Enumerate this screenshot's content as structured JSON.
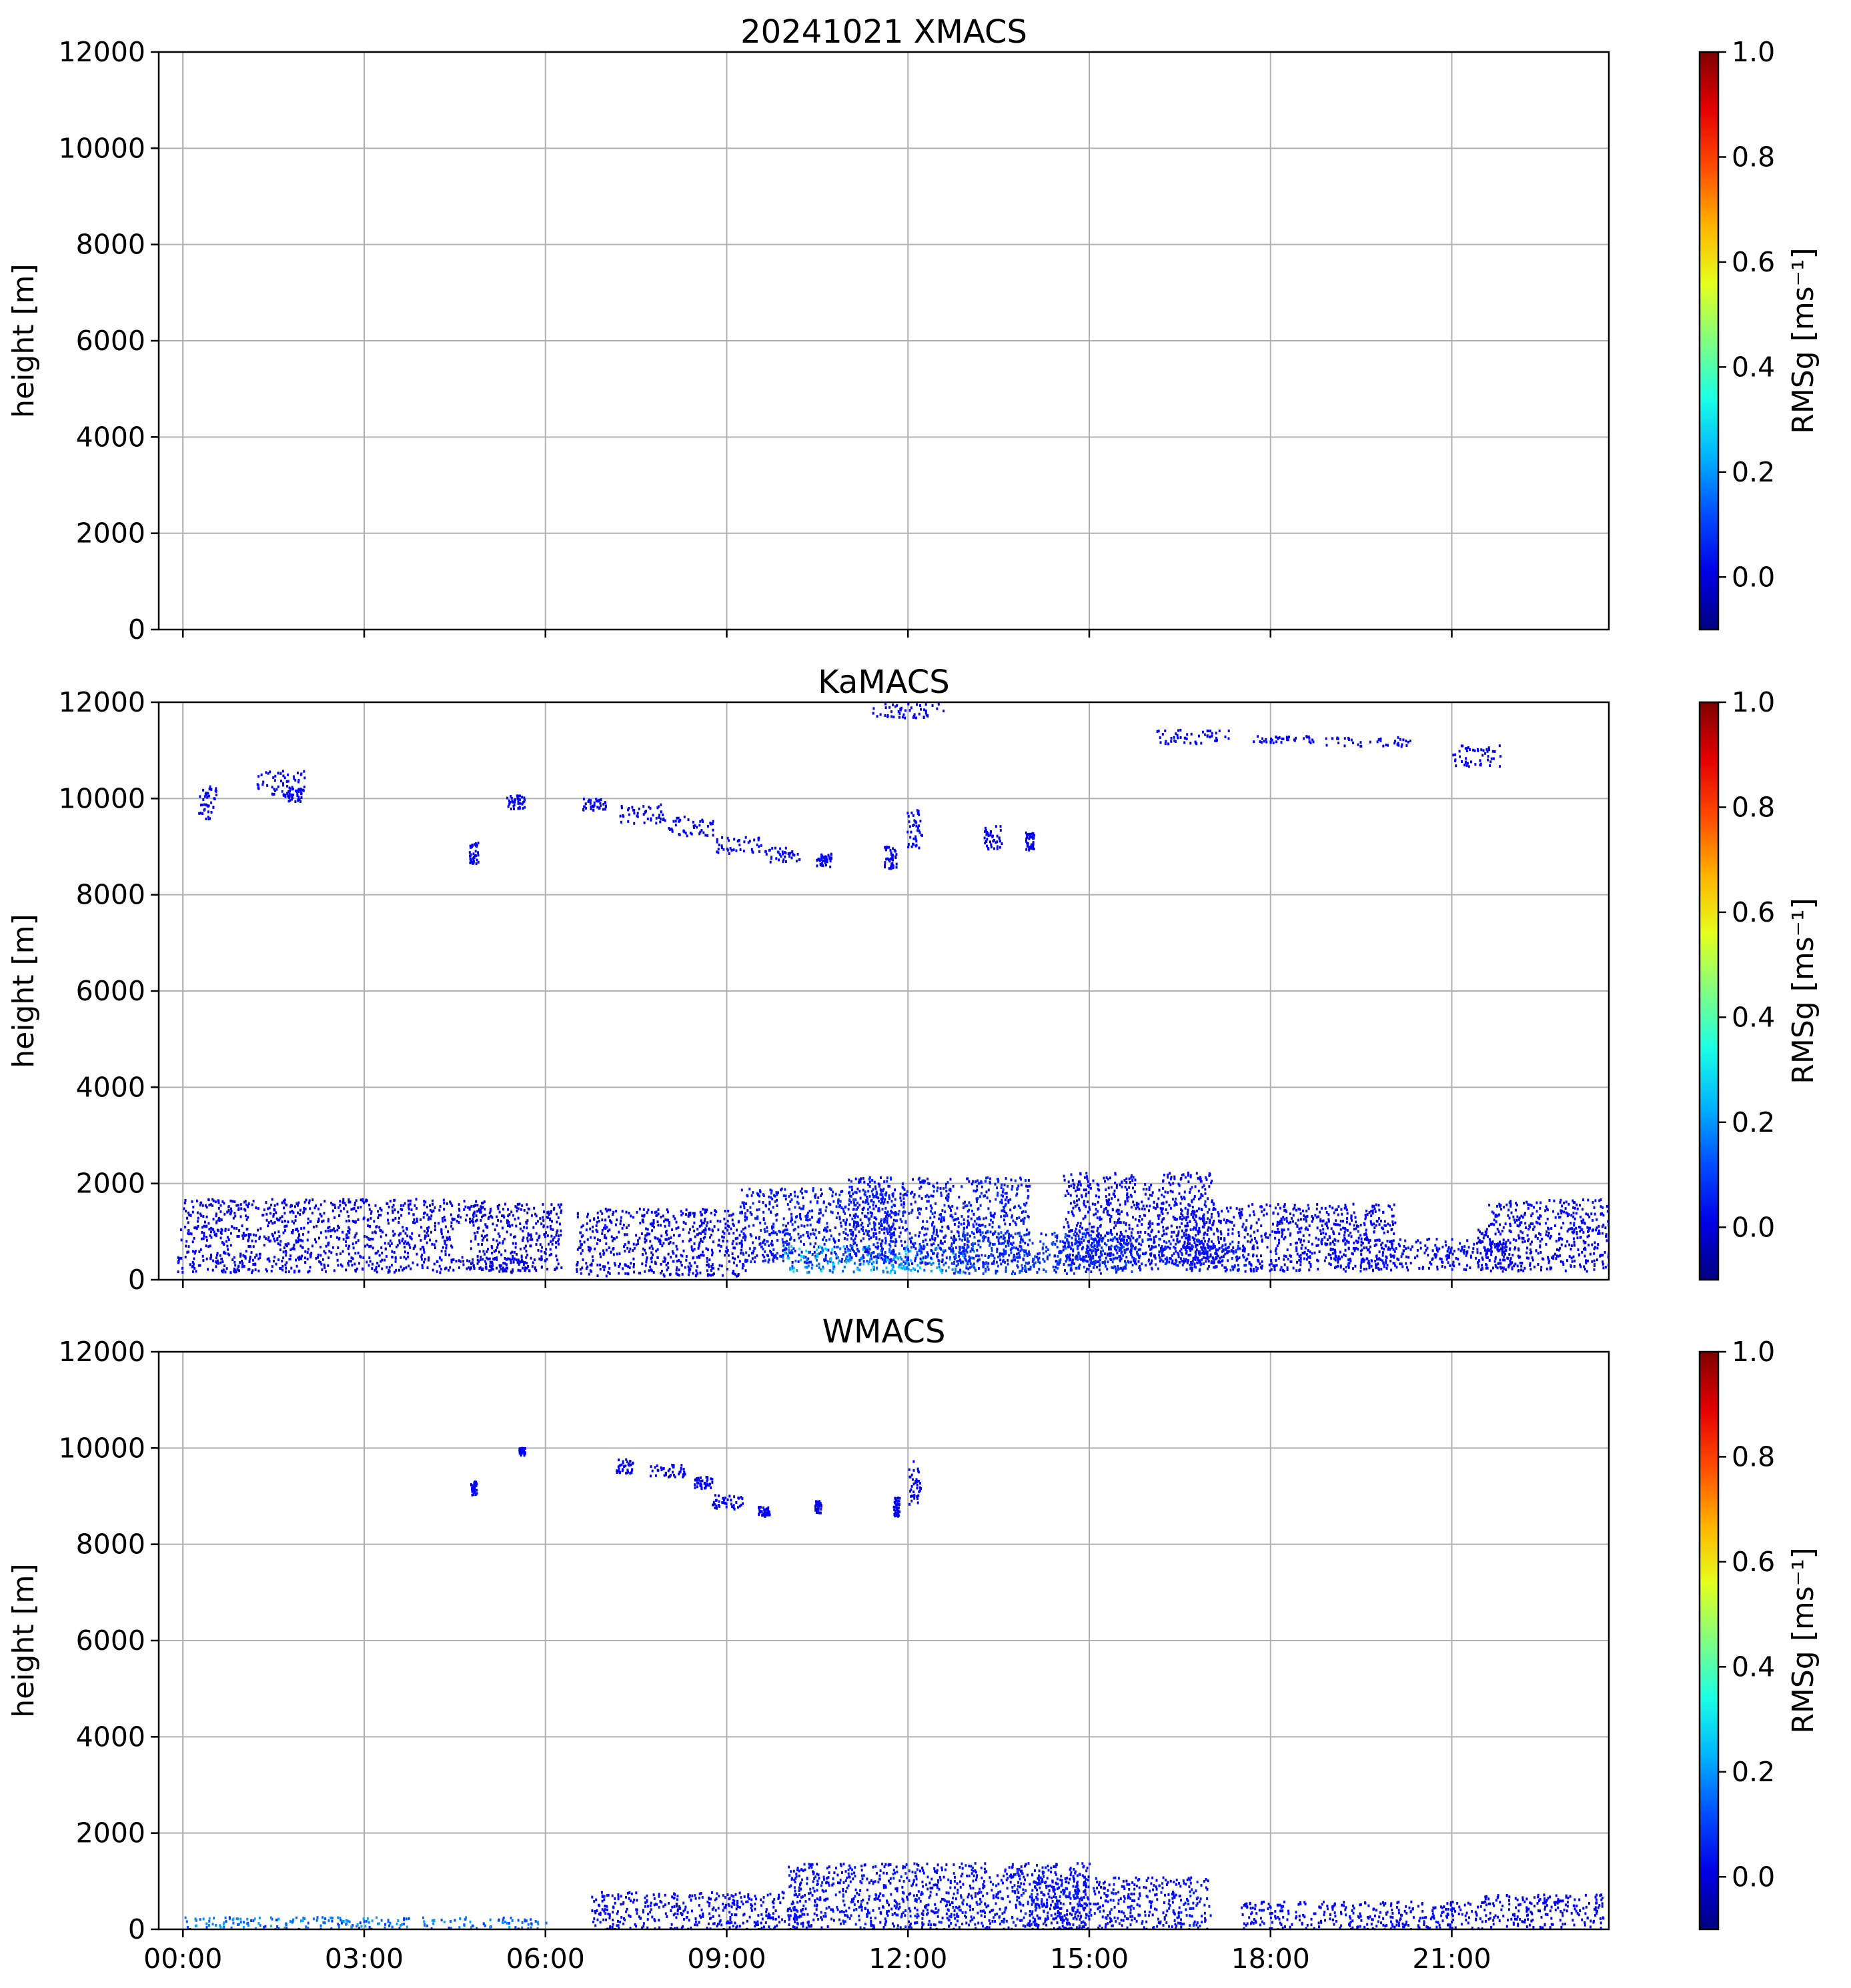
{
  "chart_data": [
    {
      "type": "heatmap",
      "title": "20241021 XMACS",
      "xlabel": "",
      "ylabel": "height [m]",
      "ylim": [
        0,
        12000
      ],
      "xlim_hours": [
        -0.4,
        23.6
      ],
      "yticks": [
        0,
        2000,
        4000,
        6000,
        8000,
        10000,
        12000
      ],
      "xticks_hours": [
        0,
        3,
        6,
        9,
        12,
        15,
        18,
        21
      ],
      "xticklabels": [],
      "grid": true,
      "colorbar": {
        "label": "RMSg [ms⁻¹]",
        "range": [
          -0.1,
          1.0
        ],
        "ticks": [
          0.0,
          0.2,
          0.4,
          0.6,
          0.8,
          1.0
        ],
        "ticklabels": [
          "0.0",
          "0.2",
          "0.4",
          "0.6",
          "0.8",
          "1.0"
        ],
        "colormap": "jet"
      },
      "cells": []
    },
    {
      "type": "heatmap",
      "title": "KaMACS",
      "xlabel": "",
      "ylabel": "height [m]",
      "ylim": [
        0,
        12000
      ],
      "xlim_hours": [
        -0.4,
        23.6
      ],
      "yticks": [
        0,
        2000,
        4000,
        6000,
        8000,
        10000,
        12000
      ],
      "xticks_hours": [
        0,
        3,
        6,
        9,
        12,
        15,
        18,
        21
      ],
      "xticklabels": [],
      "grid": true,
      "colorbar": {
        "label": "RMSg [ms⁻¹]",
        "range": [
          -0.1,
          1.0
        ],
        "ticks": [
          0.0,
          0.2,
          0.4,
          0.6,
          0.8,
          1.0
        ],
        "ticklabels": [
          "0.0",
          "0.2",
          "0.4",
          "0.6",
          "0.8",
          "1.0"
        ],
        "colormap": "jet"
      },
      "cells": [
        [
          0.4,
          9950,
          0.3,
          700,
          0.03
        ],
        [
          1.6,
          10350,
          0.8,
          500,
          0.04
        ],
        [
          1.8,
          10100,
          0.3,
          300,
          0.03
        ],
        [
          4.8,
          8900,
          0.15,
          500,
          0.03
        ],
        [
          5.5,
          9950,
          0.3,
          300,
          0.03
        ],
        [
          6.8,
          9900,
          0.4,
          250,
          0.03
        ],
        [
          7.6,
          9700,
          0.8,
          400,
          0.03
        ],
        [
          8.4,
          9450,
          0.8,
          400,
          0.03
        ],
        [
          9.2,
          9050,
          0.8,
          350,
          0.04
        ],
        [
          9.9,
          8850,
          0.6,
          300,
          0.04
        ],
        [
          10.6,
          8750,
          0.25,
          300,
          0.03
        ],
        [
          11.7,
          8800,
          0.2,
          500,
          0.03
        ],
        [
          12.1,
          9400,
          0.25,
          800,
          0.04
        ],
        [
          13.4,
          9200,
          0.3,
          500,
          0.03
        ],
        [
          14.0,
          9150,
          0.15,
          400,
          0.03
        ],
        [
          12.0,
          11850,
          1.2,
          300,
          0.03
        ],
        [
          16.7,
          11300,
          1.2,
          300,
          0.03
        ],
        [
          18.2,
          11250,
          1.0,
          150,
          0.03
        ],
        [
          19.6,
          11200,
          1.4,
          200,
          0.04
        ],
        [
          21.4,
          10900,
          0.8,
          450,
          0.03
        ],
        [
          2.8,
          400,
          5.8,
          450,
          0.03
        ],
        [
          2.2,
          900,
          4.5,
          500,
          0.03
        ],
        [
          2.5,
          1450,
          5.0,
          500,
          0.02
        ],
        [
          5.5,
          900,
          1.5,
          1400,
          0.01
        ],
        [
          7.9,
          800,
          2.8,
          1400,
          0.03
        ],
        [
          10.5,
          1150,
          2.6,
          1550,
          0.06
        ],
        [
          11.5,
          450,
          3.2,
          550,
          0.2
        ],
        [
          12.5,
          1250,
          3.0,
          1800,
          0.06
        ],
        [
          14.2,
          600,
          3.0,
          900,
          0.09
        ],
        [
          15.8,
          1300,
          2.5,
          1900,
          0.04
        ],
        [
          16.0,
          550,
          3.2,
          650,
          0.07
        ],
        [
          18.3,
          900,
          3.5,
          1400,
          0.04
        ],
        [
          20.5,
          550,
          3.0,
          650,
          0.04
        ],
        [
          22.5,
          650,
          2.2,
          900,
          0.03
        ],
        [
          22.6,
          1400,
          2.0,
          600,
          0.04
        ]
      ]
    },
    {
      "type": "heatmap",
      "title": "WMACS",
      "xlabel": "",
      "ylabel": "height [m]",
      "ylim": [
        0,
        12000
      ],
      "xlim_hours": [
        -0.4,
        23.6
      ],
      "yticks": [
        0,
        2000,
        4000,
        6000,
        8000,
        10000,
        12000
      ],
      "xticks_hours": [
        0,
        3,
        6,
        9,
        12,
        15,
        18,
        21
      ],
      "xticklabels": [
        "00:00",
        "03:00",
        "06:00",
        "09:00",
        "12:00",
        "15:00",
        "18:00",
        "21:00"
      ],
      "grid": true,
      "colorbar": {
        "label": "RMSg [ms⁻¹]",
        "range": [
          -0.1,
          1.0
        ],
        "ticks": [
          0.0,
          0.2,
          0.4,
          0.6,
          0.8,
          1.0
        ],
        "ticklabels": [
          "0.0",
          "0.2",
          "0.4",
          "0.6",
          "0.8",
          "1.0"
        ],
        "colormap": "jet"
      },
      "cells": [
        [
          4.8,
          9200,
          0.1,
          300,
          0.03
        ],
        [
          5.6,
          9950,
          0.1,
          150,
          0.03
        ],
        [
          7.3,
          9650,
          0.3,
          300,
          0.03
        ],
        [
          8.0,
          9550,
          0.6,
          250,
          0.03
        ],
        [
          8.6,
          9300,
          0.3,
          250,
          0.03
        ],
        [
          9.0,
          8900,
          0.5,
          300,
          0.03
        ],
        [
          9.6,
          8700,
          0.2,
          200,
          0.03
        ],
        [
          10.5,
          8800,
          0.1,
          250,
          0.03
        ],
        [
          11.8,
          8800,
          0.1,
          400,
          0.03
        ],
        [
          12.1,
          9300,
          0.2,
          900,
          0.03
        ],
        [
          3.0,
          150,
          6.0,
          250,
          0.16
        ],
        [
          8.5,
          400,
          3.5,
          800,
          0.04
        ],
        [
          12.5,
          700,
          5.0,
          1400,
          0.05
        ],
        [
          15.5,
          550,
          3.0,
          1100,
          0.05
        ],
        [
          19.5,
          300,
          4.0,
          600,
          0.04
        ],
        [
          22.5,
          400,
          2.0,
          700,
          0.03
        ]
      ]
    }
  ]
}
